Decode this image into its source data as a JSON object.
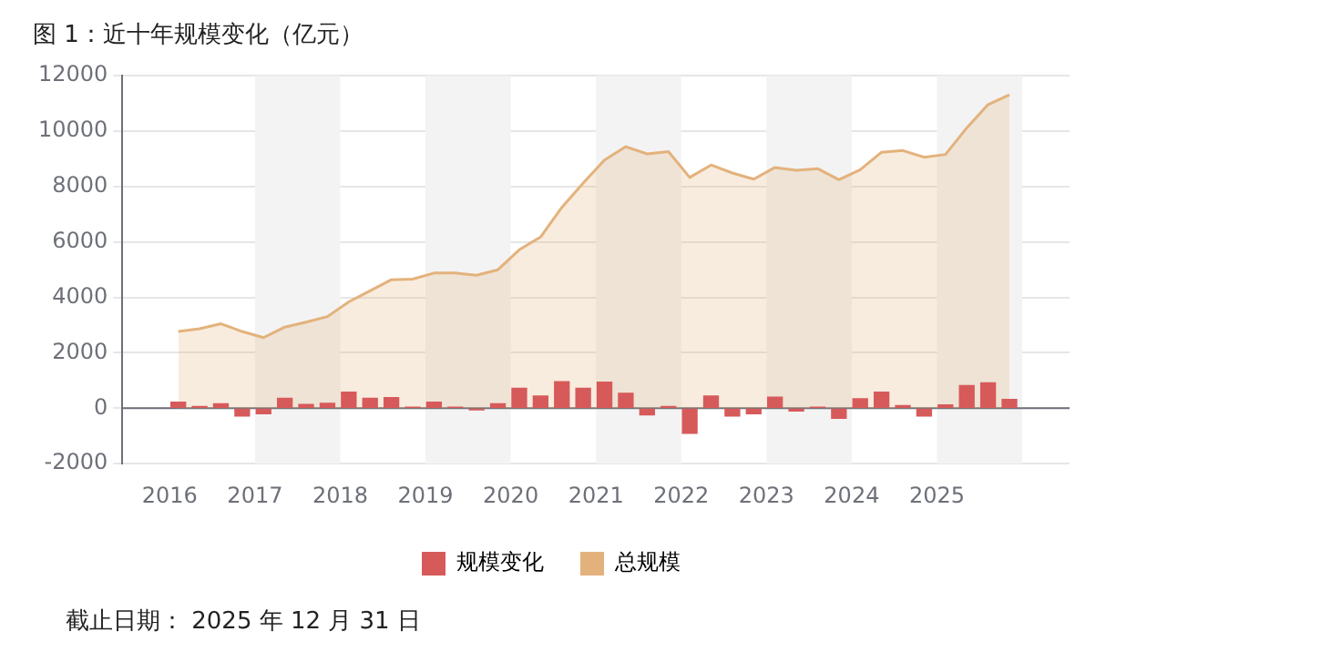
{
  "chart_data": {
    "type": "bar",
    "title": "图 1：近十年规模变化（亿元）",
    "x": [
      2016.1,
      2016.35,
      2016.6,
      2016.85,
      2017.1,
      2017.35,
      2017.6,
      2017.85,
      2018.1,
      2018.35,
      2018.6,
      2018.85,
      2019.1,
      2019.35,
      2019.6,
      2019.85,
      2020.1,
      2020.35,
      2020.6,
      2020.85,
      2021.1,
      2021.35,
      2021.6,
      2021.85,
      2022.1,
      2022.35,
      2022.6,
      2022.85,
      2023.1,
      2023.35,
      2023.6,
      2023.85,
      2024.1,
      2024.35,
      2024.6,
      2024.85,
      2025.1,
      2025.35,
      2025.6,
      2025.85
    ],
    "series": [
      {
        "name": "规模变化",
        "color": "#d75a5a",
        "values": [
          220,
          60,
          160,
          -280,
          -200,
          360,
          140,
          180,
          580,
          360,
          380,
          40,
          220,
          40,
          -60,
          160,
          720,
          440,
          960,
          720,
          940,
          540,
          -240,
          60,
          -900,
          440,
          -280,
          -200,
          400,
          -100,
          40,
          -360,
          340,
          580,
          100,
          -280,
          120,
          820,
          920,
          320
        ]
      },
      {
        "name": "总规模",
        "type": "area",
        "color": "#e3b27c",
        "values": [
          2770,
          2870,
          3050,
          2770,
          2550,
          2930,
          3110,
          3310,
          3840,
          4240,
          4640,
          4660,
          4880,
          4880,
          4800,
          5000,
          5720,
          6180,
          7250,
          8130,
          8960,
          9440,
          9180,
          9260,
          8330,
          8780,
          8490,
          8270,
          8690,
          8590,
          8650,
          8250,
          8610,
          9240,
          9300,
          9060,
          9160,
          10120,
          10960,
          11310
        ]
      }
    ],
    "xlim": [
      2016,
      2026
    ],
    "xticks": [
      2016,
      2017,
      2018,
      2019,
      2020,
      2021,
      2022,
      2023,
      2024,
      2025
    ],
    "ylim": [
      -2000,
      12000
    ],
    "yticks": [
      -2000,
      0,
      2000,
      4000,
      6000,
      8000,
      10000,
      12000
    ],
    "grid": "y",
    "legend": "bottom",
    "bands": [
      {
        "axis": "x",
        "from": 2017,
        "to": 2018,
        "color": "#f3f3f3"
      },
      {
        "axis": "x",
        "from": 2019,
        "to": 2020,
        "color": "#f3f3f3"
      },
      {
        "axis": "x",
        "from": 2021,
        "to": 2022,
        "color": "#f3f3f3"
      },
      {
        "axis": "x",
        "from": 2023,
        "to": 2024,
        "color": "#f3f3f3"
      },
      {
        "axis": "x",
        "from": 2025,
        "to": 2026,
        "color": "#f3f3f3"
      }
    ],
    "annotations": [
      "截止日期： 2025 年 12 月 31 日"
    ]
  }
}
